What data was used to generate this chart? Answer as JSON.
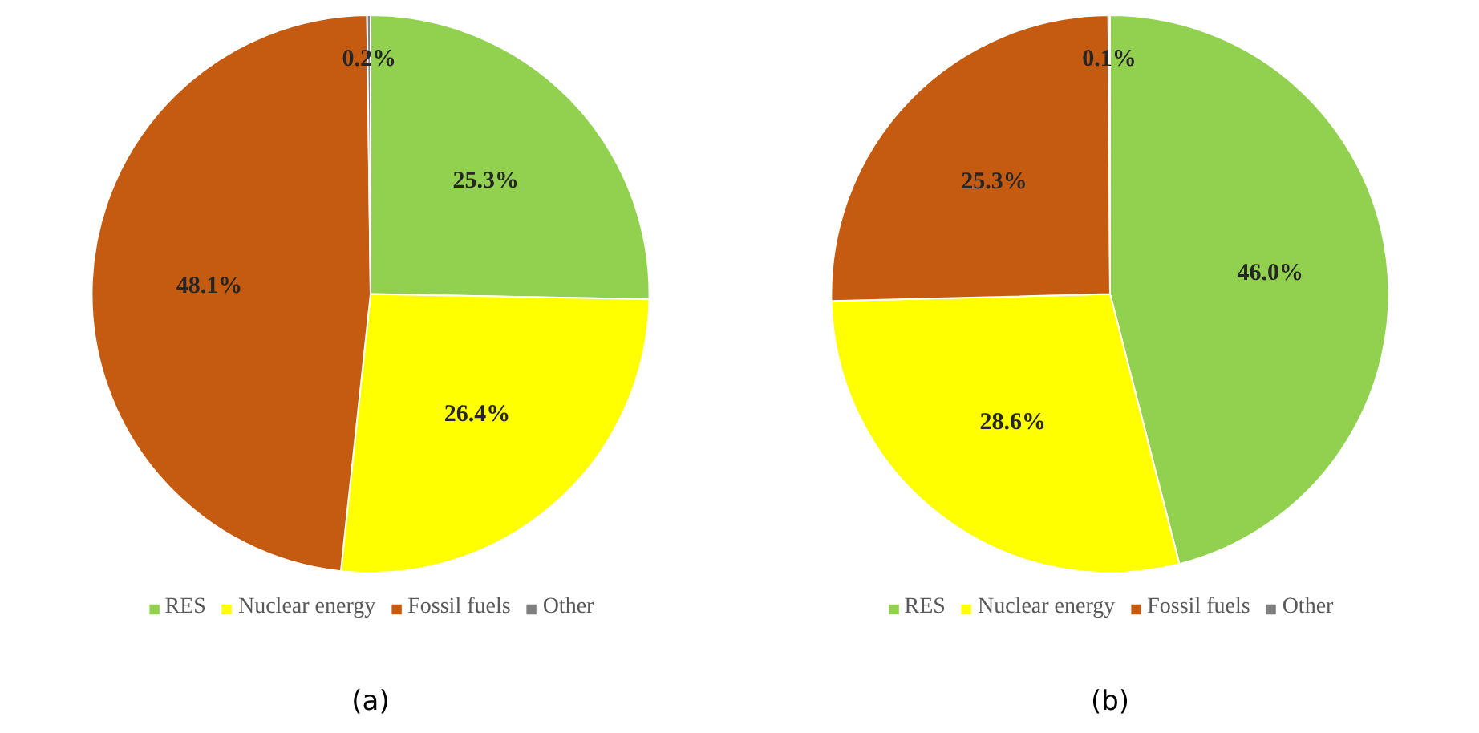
{
  "chart_data": [
    {
      "type": "pie",
      "title": "(a)",
      "categories": [
        "RES",
        "Nuclear energy",
        "Fossil fuels",
        "Other"
      ],
      "values": [
        25.3,
        26.4,
        48.1,
        0.2
      ],
      "colors": [
        "#92d050",
        "#ffff00",
        "#c55a11",
        "#7f7f7f"
      ],
      "value_labels": [
        "25.3%",
        "26.4%",
        "48.1%",
        "0.2%"
      ],
      "legend": "bottom"
    },
    {
      "type": "pie",
      "title": "(b)",
      "categories": [
        "RES",
        "Nuclear energy",
        "Fossil fuels",
        "Other"
      ],
      "values": [
        46.0,
        28.6,
        25.3,
        0.1
      ],
      "colors": [
        "#92d050",
        "#ffff00",
        "#c55a11",
        "#7f7f7f"
      ],
      "value_labels": [
        "46.0%",
        "28.6%",
        "25.3%",
        "0.1%"
      ],
      "legend": "bottom"
    }
  ]
}
